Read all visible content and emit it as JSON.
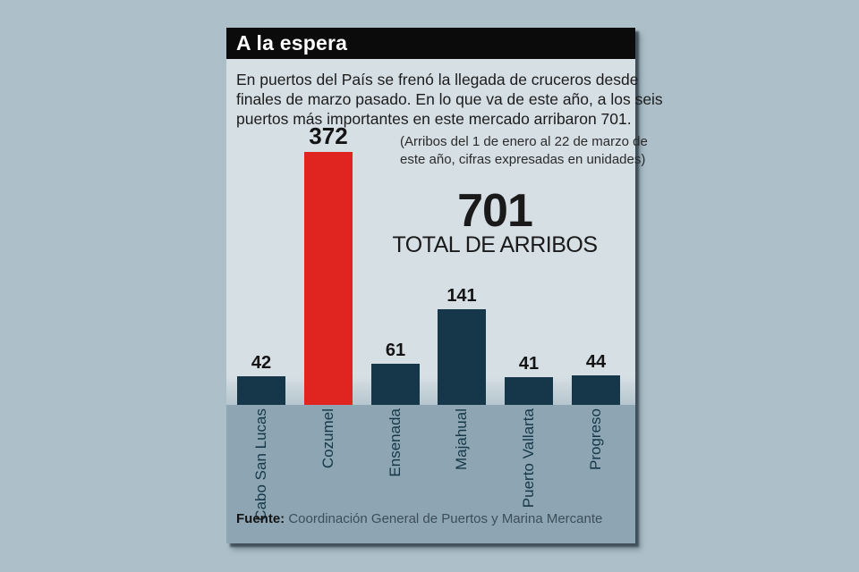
{
  "panel": {
    "title": "A la espera",
    "description_lines": [
      "En puertos del País se frenó la llegada de cruceros desde",
      "finales de marzo pasado. En lo que va de este año, a los seis",
      "puertos más importantes en este mercado arribaron 701."
    ]
  },
  "chart_data": {
    "type": "bar",
    "title": "A la espera",
    "note_lines": [
      "(Arribos del 1 de enero al 22 de marzo de",
      "este año, cifras expresadas en unidades)"
    ],
    "total": {
      "value": "701",
      "label": "TOTAL DE ARRIBOS"
    },
    "categories": [
      "Cabo San Lucas",
      "Cozumel",
      "Ensenada",
      "Majahual",
      "Puerto Vallarta",
      "Progreso"
    ],
    "values": [
      42,
      372,
      61,
      141,
      41,
      44
    ],
    "highlight_index": 1,
    "colors": {
      "bar": "#16374a",
      "highlight": "#e0241f",
      "band": "#8ea6b3",
      "panel": "#d6dfe4",
      "page_background": "#adc0ca",
      "title_bar": "#0b0b0b"
    },
    "xlabel": "",
    "ylabel": "",
    "ylim": [
      0,
      400
    ],
    "grid": false,
    "legend": false
  },
  "footer": {
    "source_label": "Fuente:",
    "source_text": "Coordinación General de Puertos y Marina Mercante"
  }
}
